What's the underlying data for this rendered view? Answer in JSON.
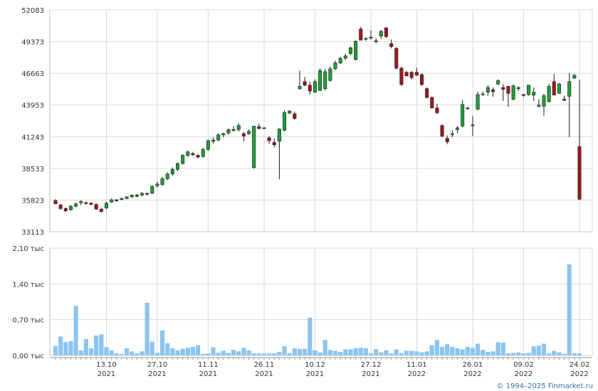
{
  "chart_data": [
    {
      "type": "candlestick",
      "title": "",
      "y_ticks": [
        "52083",
        "49373",
        "46663",
        "43953",
        "41243",
        "38533",
        "35823",
        "33113"
      ],
      "ylim": [
        33113,
        52083
      ],
      "x_dates": [
        "2021-09-29",
        "2021-09-30",
        "2021-10-01",
        "2021-10-04",
        "2021-10-05",
        "2021-10-06",
        "2021-10-07",
        "2021-10-08",
        "2021-10-11",
        "2021-10-12",
        "2021-10-13",
        "2021-10-14",
        "2021-10-15",
        "2021-10-18",
        "2021-10-19",
        "2021-10-20",
        "2021-10-21",
        "2021-10-22",
        "2021-10-25",
        "2021-10-26",
        "2021-10-27",
        "2021-10-28",
        "2021-10-29",
        "2021-11-01",
        "2021-11-02",
        "2021-11-03",
        "2021-11-05",
        "2021-11-08",
        "2021-11-09",
        "2021-11-10",
        "2021-11-11",
        "2021-11-12",
        "2021-11-15",
        "2021-11-16",
        "2021-11-17",
        "2021-11-18",
        "2021-11-19",
        "2021-11-22",
        "2021-11-23",
        "2021-11-24",
        "2021-11-25",
        "2021-11-26",
        "2021-11-29",
        "2021-11-30",
        "2021-12-01",
        "2021-12-02",
        "2021-12-03",
        "2021-12-06",
        "2021-12-07",
        "2021-12-08",
        "2021-12-09",
        "2021-12-10",
        "2021-12-13",
        "2021-12-14",
        "2021-12-15",
        "2021-12-16",
        "2021-12-17",
        "2021-12-20",
        "2021-12-21",
        "2021-12-22",
        "2021-12-23",
        "2021-12-24",
        "2021-12-27",
        "2021-12-28",
        "2021-12-29",
        "2021-12-30",
        "2022-01-03",
        "2022-01-04",
        "2022-01-05",
        "2022-01-06",
        "2022-01-10",
        "2022-01-11",
        "2022-01-12",
        "2022-01-13",
        "2022-01-14",
        "2022-01-17",
        "2022-01-18",
        "2022-01-19",
        "2022-01-20",
        "2022-01-21",
        "2022-01-24",
        "2022-01-25",
        "2022-01-26",
        "2022-01-27",
        "2022-01-28",
        "2022-01-31",
        "2022-02-01",
        "2022-02-02",
        "2022-02-03",
        "2022-02-04",
        "2022-02-07",
        "2022-02-08",
        "2022-02-09",
        "2022-02-10",
        "2022-02-11",
        "2022-02-14",
        "2022-02-15",
        "2022-02-16",
        "2022-02-17",
        "2022-02-18",
        "2022-02-21",
        "2022-02-22",
        "2022-02-23",
        "2022-02-24"
      ],
      "ohlc": [
        [
          35780,
          35900,
          35500,
          35500
        ],
        [
          35400,
          35500,
          35000,
          35100
        ],
        [
          35100,
          35200,
          34800,
          34900
        ],
        [
          35000,
          35400,
          34900,
          35300
        ],
        [
          35300,
          35600,
          35200,
          35500
        ],
        [
          35600,
          35800,
          35400,
          35700
        ],
        [
          35600,
          35700,
          35450,
          35550
        ],
        [
          35550,
          35650,
          35400,
          35450
        ],
        [
          35450,
          35550,
          35000,
          35050
        ],
        [
          35050,
          35150,
          34750,
          34850
        ],
        [
          35150,
          35700,
          35050,
          35550
        ],
        [
          35650,
          35950,
          35600,
          35850
        ],
        [
          35850,
          35900,
          35700,
          35750
        ],
        [
          35900,
          36050,
          35800,
          35950
        ],
        [
          35950,
          36150,
          35900,
          36100
        ],
        [
          36100,
          36300,
          36000,
          36250
        ],
        [
          36250,
          36350,
          36050,
          36150
        ],
        [
          36250,
          36500,
          36150,
          36400
        ],
        [
          36400,
          36450,
          36200,
          36350
        ],
        [
          36400,
          37100,
          36350,
          37000
        ],
        [
          37050,
          37400,
          36900,
          37200
        ],
        [
          37150,
          37800,
          37050,
          37650
        ],
        [
          37650,
          38200,
          37550,
          38050
        ],
        [
          38050,
          38600,
          37900,
          38450
        ],
        [
          38450,
          39050,
          38300,
          38950
        ],
        [
          38950,
          39750,
          38850,
          39650
        ],
        [
          39650,
          40050,
          39500,
          39950
        ],
        [
          39800,
          39950,
          39600,
          39700
        ],
        [
          39650,
          39750,
          39400,
          39500
        ],
        [
          39550,
          40300,
          39450,
          40150
        ],
        [
          40150,
          41000,
          40050,
          40900
        ],
        [
          40850,
          41200,
          40650,
          40950
        ],
        [
          40950,
          41550,
          40850,
          41400
        ],
        [
          41400,
          41600,
          41200,
          41500
        ],
        [
          41550,
          41950,
          41450,
          41850
        ],
        [
          41850,
          42150,
          41700,
          41800
        ],
        [
          41850,
          42400,
          41700,
          42200
        ],
        [
          41500,
          41650,
          40850,
          41300
        ],
        [
          41500,
          41850,
          41400,
          41700
        ],
        [
          38600,
          42150,
          38500,
          42150
        ],
        [
          42100,
          42350,
          41850,
          41950
        ],
        [
          41950,
          42050,
          41900,
          42000
        ],
        [
          41150,
          41300,
          40650,
          40900
        ],
        [
          40750,
          41100,
          40350,
          40550
        ],
        [
          40850,
          41950,
          37600,
          41900
        ],
        [
          41800,
          43500,
          41700,
          43300
        ],
        [
          43250,
          43500,
          43200,
          43450
        ],
        [
          43200,
          43400,
          42700,
          42800
        ],
        [
          45350,
          46900,
          45250,
          45550
        ],
        [
          45950,
          46350,
          45550,
          45650
        ],
        [
          45650,
          45950,
          44850,
          45150
        ],
        [
          45050,
          46150,
          45000,
          45950
        ],
        [
          45200,
          47100,
          45150,
          46900
        ],
        [
          45350,
          47050,
          45200,
          46800
        ],
        [
          46050,
          47250,
          45950,
          47050
        ],
        [
          47050,
          47750,
          46950,
          47550
        ],
        [
          47550,
          48050,
          47450,
          47950
        ],
        [
          47950,
          48350,
          47800,
          48150
        ],
        [
          48350,
          48950,
          48250,
          48850
        ],
        [
          47850,
          49500,
          47750,
          49400
        ],
        [
          50450,
          50650,
          49500,
          49500
        ],
        [
          49600,
          49750,
          49450,
          49650
        ],
        [
          49750,
          50350,
          49550,
          49750
        ],
        [
          49400,
          49650,
          49200,
          49450
        ],
        [
          49850,
          50400,
          49600,
          50250
        ],
        [
          50550,
          50600,
          49700,
          49800
        ],
        [
          49200,
          49550,
          48800,
          48950
        ],
        [
          48800,
          48900,
          47000,
          47100
        ],
        [
          47100,
          47250,
          45600,
          45700
        ],
        [
          46750,
          46850,
          46400,
          46450
        ],
        [
          46750,
          46850,
          46150,
          46300
        ],
        [
          46750,
          47150,
          46450,
          46500
        ],
        [
          46550,
          46650,
          45600,
          45700
        ],
        [
          45350,
          45450,
          44500,
          44600
        ],
        [
          44600,
          44700,
          43650,
          43700
        ],
        [
          43700,
          44050,
          43150,
          43300
        ],
        [
          42200,
          42300,
          41200,
          41300
        ],
        [
          41100,
          41350,
          40600,
          40800
        ],
        [
          41500,
          41800,
          41200,
          41500
        ],
        [
          41850,
          42150,
          41550,
          42000
        ],
        [
          42150,
          44400,
          42050,
          44000
        ],
        [
          43650,
          43800,
          43550,
          43700
        ],
        [
          42200,
          43000,
          41300,
          42250
        ],
        [
          43600,
          45100,
          43500,
          44850
        ],
        [
          44850,
          45100,
          44750,
          44900
        ],
        [
          45050,
          45650,
          44750,
          45450
        ],
        [
          45250,
          45450,
          44650,
          45100
        ],
        [
          45750,
          46150,
          45650,
          46050
        ],
        [
          45450,
          45750,
          44300,
          45300
        ],
        [
          45550,
          45600,
          43800,
          44950
        ],
        [
          44450,
          45700,
          44350,
          45600
        ],
        [
          45350,
          45550,
          45150,
          45450
        ],
        [
          44850,
          44900,
          44650,
          44800
        ],
        [
          44850,
          45650,
          44750,
          45650
        ],
        [
          44800,
          45450,
          44300,
          45050
        ],
        [
          43850,
          44450,
          43750,
          43950
        ],
        [
          43850,
          44900,
          43050,
          44750
        ],
        [
          44250,
          45750,
          44150,
          45550
        ],
        [
          45950,
          46600,
          44800,
          44800
        ],
        [
          44950,
          45850,
          44900,
          45750
        ],
        [
          44450,
          44750,
          44300,
          44350
        ],
        [
          44700,
          46700,
          41200,
          45950
        ],
        [
          46250,
          46600,
          46200,
          46500
        ],
        [
          40400,
          46100,
          35800,
          35900
        ]
      ]
    },
    {
      "type": "bar",
      "title": "",
      "y_ticks": [
        "2,10 тыс",
        "1,40 тыс",
        "0,70 тыс",
        "0,00 тыс"
      ],
      "ylim": [
        0,
        2100
      ],
      "x_ticks": [
        {
          "date": "2021-10-13",
          "day": "13.10",
          "year": "2021"
        },
        {
          "date": "2021-10-27",
          "day": "27.10",
          "year": "2021"
        },
        {
          "date": "2021-11-11",
          "day": "11.11",
          "year": "2021"
        },
        {
          "date": "2021-11-26",
          "day": "26.11",
          "year": "2021"
        },
        {
          "date": "2021-12-10",
          "day": "10.12",
          "year": "2021"
        },
        {
          "date": "2021-12-27",
          "day": "27.12",
          "year": "2021"
        },
        {
          "date": "2022-01-11",
          "day": "11.01",
          "year": "2022"
        },
        {
          "date": "2022-01-26",
          "day": "26.01",
          "year": "2022"
        },
        {
          "date": "2022-02-09",
          "day": "09.02",
          "year": "2022"
        },
        {
          "date": "2022-02-24",
          "day": "24.02",
          "year": "2022"
        }
      ],
      "values": [
        180,
        370,
        260,
        280,
        970,
        100,
        320,
        140,
        390,
        410,
        160,
        100,
        40,
        30,
        140,
        80,
        40,
        80,
        1030,
        270,
        50,
        490,
        240,
        140,
        100,
        130,
        150,
        170,
        200,
        30,
        40,
        160,
        50,
        90,
        50,
        110,
        80,
        150,
        100,
        40,
        40,
        40,
        40,
        40,
        70,
        180,
        40,
        140,
        130,
        130,
        740,
        100,
        60,
        300,
        110,
        90,
        70,
        120,
        120,
        140,
        150,
        140,
        40,
        120,
        60,
        100,
        40,
        120,
        40,
        90,
        90,
        80,
        60,
        80,
        200,
        300,
        170,
        220,
        170,
        140,
        120,
        170,
        150,
        230,
        110,
        70,
        80,
        260,
        250,
        40,
        50,
        60,
        40,
        50,
        180,
        190,
        230,
        40,
        90,
        60,
        30,
        1780,
        40,
        40
      ],
      "color": "#8cc4ef"
    }
  ],
  "footer": {
    "copyright_text": "© 1994–2025 Finmarket.ru"
  }
}
